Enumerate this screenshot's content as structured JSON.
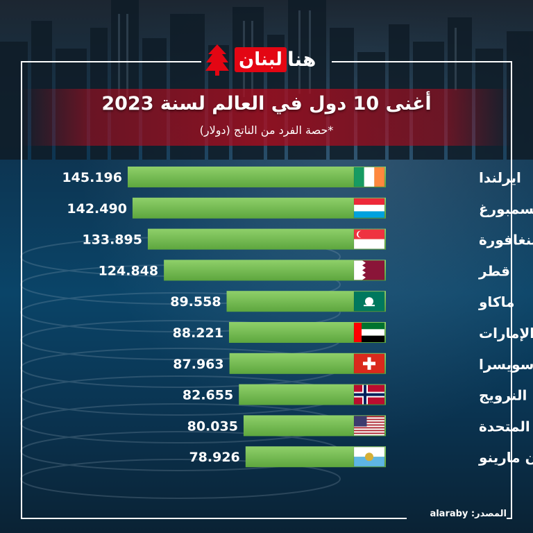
{
  "logo": {
    "part_a": "لبنان",
    "part_b": "هنا",
    "mark_icon": "cedar-icon"
  },
  "header": {
    "title": "أغنى 10 دول في العالم لسنة 2023",
    "subtitle": "*حصة الفرد من الناتج (دولار)"
  },
  "source": "المصدر: alaraby",
  "chart_data": {
    "type": "bar",
    "orientation": "horizontal",
    "title": "أغنى 10 دول في العالم لسنة 2023",
    "subtitle": "*حصة الفرد من الناتج (دولار)",
    "xlabel": "",
    "ylabel": "",
    "xlim": [
      0,
      145.196
    ],
    "grid": false,
    "legend": "none",
    "bar_color": "#7cc35a",
    "categories": [
      "ايرلندا",
      "لوكسمبورغ",
      "سنغافورة",
      "قطر",
      "ماكاو",
      "الإمارات",
      "سويسرا",
      "النرويج",
      "الولايات المتحدة",
      "سان مارينو"
    ],
    "values": [
      145.196,
      142.49,
      133.895,
      124.848,
      89.558,
      88.221,
      87.963,
      82.655,
      80.035,
      78.926
    ],
    "value_labels": [
      "145.196",
      "142.490",
      "133.895",
      "124.848",
      "89.558",
      "88.221",
      "87.963",
      "82.655",
      "80.035",
      "78.926"
    ],
    "flags": [
      "ireland-flag-icon",
      "luxembourg-flag-icon",
      "singapore-flag-icon",
      "qatar-flag-icon",
      "macau-flag-icon",
      "uae-flag-icon",
      "switzerland-flag-icon",
      "norway-flag-icon",
      "usa-flag-icon",
      "san-marino-flag-icon"
    ]
  }
}
